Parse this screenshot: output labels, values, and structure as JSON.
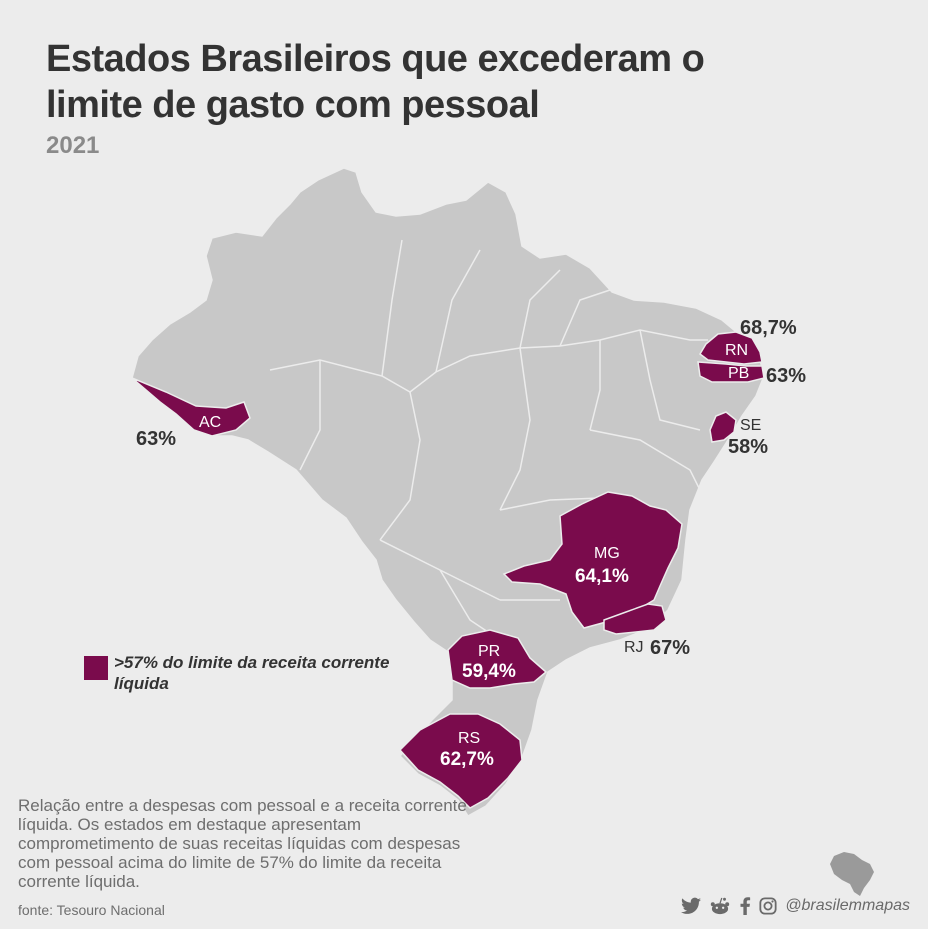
{
  "title": "Estados Brasileiros que excederam o limite de gasto com pessoal",
  "year": "2021",
  "highlight_color": "#7a0b4c",
  "base_color": "#c8c8c8",
  "states": [
    {
      "abbr": "AC",
      "pct": "63%"
    },
    {
      "abbr": "RN",
      "pct": "68,7%"
    },
    {
      "abbr": "PB",
      "pct": "63%"
    },
    {
      "abbr": "SE",
      "pct": "58%"
    },
    {
      "abbr": "MG",
      "pct": "64,1%"
    },
    {
      "abbr": "RJ",
      "pct": "67%"
    },
    {
      "abbr": "PR",
      "pct": "59,4%"
    },
    {
      "abbr": "RS",
      "pct": "62,7%"
    }
  ],
  "legend": {
    "label": ">57% do limite da receita corrente líquida"
  },
  "note": "Relação entre a despesas com pessoal e a receita corrente líquida. Os estados em destaque apresentam comprometimento de suas receitas líquidas com despesas com pessoal acima do limite de 57% do limite da receita corrente líquida.",
  "source": "fonte: Tesouro Nacional",
  "social": {
    "handle": "@brasilemmapas",
    "icons": [
      "twitter-icon",
      "reddit-icon",
      "facebook-icon",
      "instagram-icon"
    ]
  }
}
